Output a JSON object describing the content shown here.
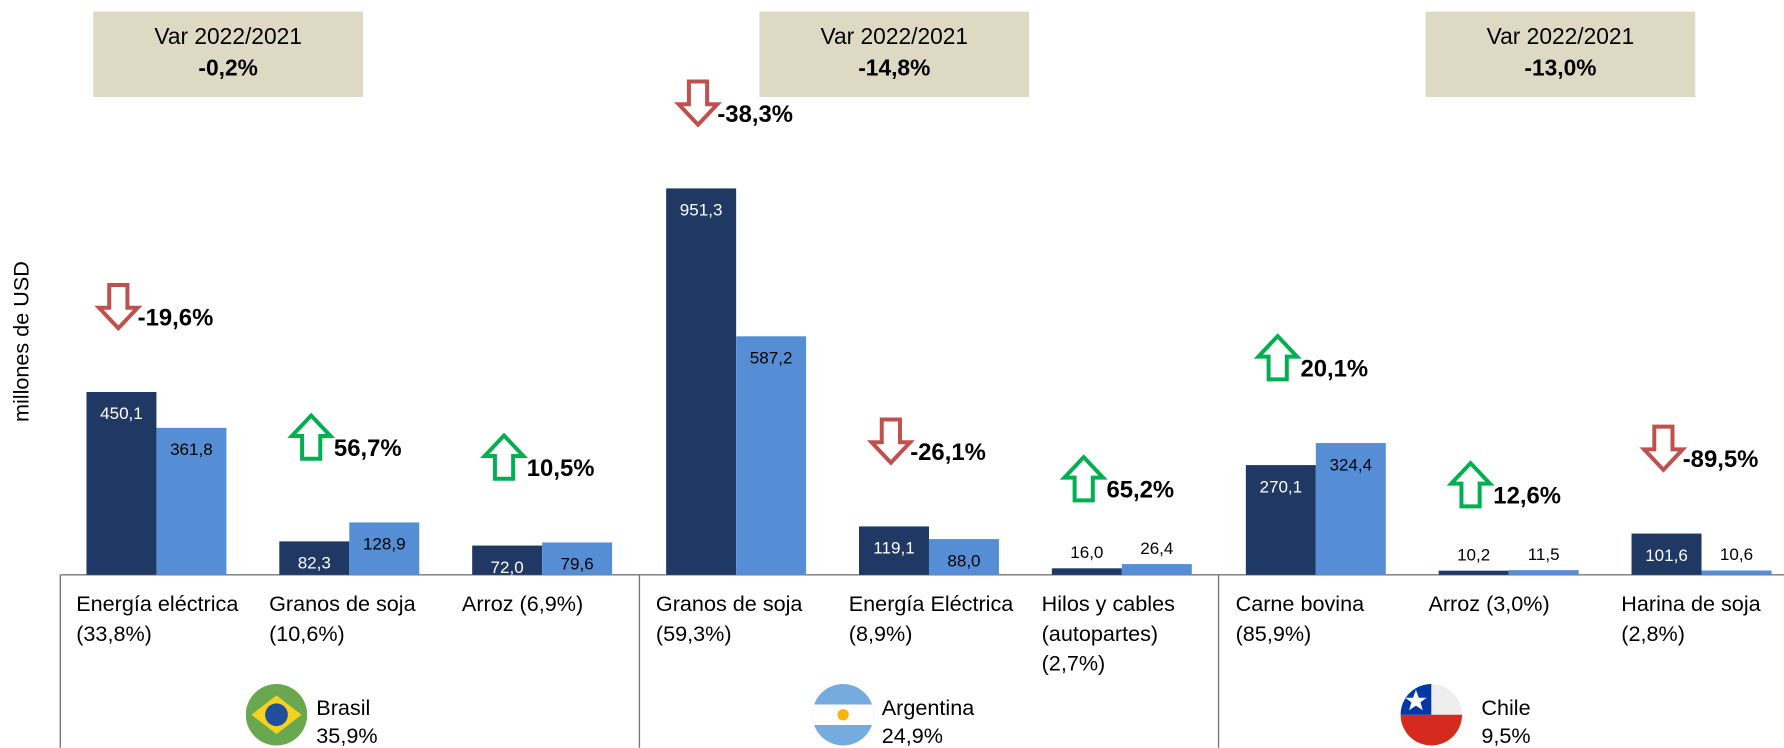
{
  "chart_data": {
    "type": "grouped-bar",
    "y_label": "millones de USD",
    "categories": [
      [
        "Energía eléctrica",
        "(33,8%)"
      ],
      [
        "Granos de soja",
        "(10,6%)"
      ],
      [
        "Arroz   (6,9%)"
      ],
      [
        "Granos de soja",
        "(59,3%)"
      ],
      [
        "Energía Eléctrica",
        "(8,9%)"
      ],
      [
        "Hilos y cables",
        "(autopartes)",
        "(2,7%)"
      ],
      [
        "Carne bovina",
        "(85,9%)"
      ],
      [
        "Arroz (3,0%)"
      ],
      [
        "Harina de soja",
        "(2,8%)"
      ]
    ],
    "series": [
      {
        "color": "#1f3864",
        "values": [
          450.1,
          82.3,
          72.0,
          951.3,
          119.1,
          16.0,
          270.1,
          10.2,
          101.6
        ],
        "value_labels": [
          "450,1",
          "82,3",
          "72,0",
          "951,3",
          "119,1",
          "16,0",
          "270,1",
          "10,2",
          "101,6"
        ]
      },
      {
        "color": "#558ed5",
        "values": [
          361.8,
          128.9,
          79.6,
          587.2,
          88.0,
          26.4,
          324.4,
          11.5,
          10.6
        ],
        "value_labels": [
          "361,8",
          "128,9",
          "79,6",
          "587,2",
          "88,0",
          "26,4",
          "324,4",
          "11,5",
          "10,6"
        ]
      }
    ],
    "changes": [
      -19.6,
      56.7,
      10.5,
      -38.3,
      -26.1,
      65.2,
      20.1,
      12.6,
      -89.5
    ],
    "change_labels": [
      "-19,6%",
      "56,7%",
      "10,5%",
      "-38,3%",
      "-26,1%",
      "65,2%",
      "20,1%",
      "12,6%",
      "-89,5%"
    ],
    "groups": [
      {
        "var_title": "Var 2022/2021",
        "var_label": "-0,2%",
        "country": "Brasil",
        "share_label": "35,9%"
      },
      {
        "var_title": "Var 2022/2021",
        "var_label": "-14,8%",
        "country": "Argentina",
        "share_label": "24,9%"
      },
      {
        "var_title": "Var 2022/2021",
        "var_label": "-13,0%",
        "country": "Chile",
        "share_label": "9,5%"
      }
    ],
    "ylim": [
      0,
      1000
    ],
    "up_color": "#00b050",
    "down_color": "#c0504d"
  }
}
